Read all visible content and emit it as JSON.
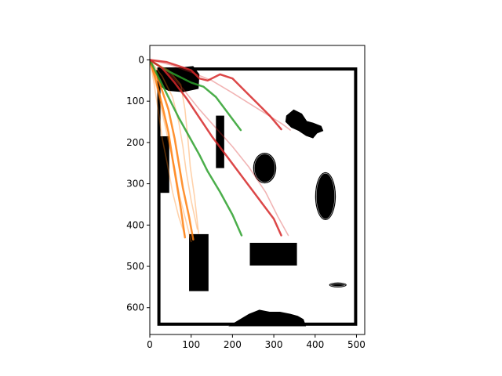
{
  "chart_data": {
    "type": "line",
    "title": "",
    "xlabel": "",
    "ylabel": "",
    "xlim": [
      0,
      520
    ],
    "ylim": [
      665,
      -35
    ],
    "y_inverted": true,
    "aspect": "equal",
    "x_ticks": [
      0,
      100,
      200,
      300,
      400,
      500
    ],
    "y_ticks": [
      0,
      100,
      200,
      300,
      400,
      500,
      600
    ],
    "x_tick_labels": [
      "0",
      "100",
      "200",
      "300",
      "400",
      "500"
    ],
    "y_tick_labels": [
      "0",
      "100",
      "200",
      "300",
      "400",
      "500",
      "600"
    ],
    "grid": false,
    "legend": "none",
    "colors": {
      "orange": "#ff7f0e",
      "green": "#2ca02c",
      "red": "#d62728",
      "obstacle": "#000000",
      "frame": "#000000"
    },
    "map": {
      "boundary": {
        "x0": 22,
        "y0": 22,
        "x1": 498,
        "y1": 640
      },
      "rectangles": [
        {
          "x0": 160,
          "y0": 135,
          "x1": 180,
          "y1": 262
        },
        {
          "x0": 95,
          "y0": 422,
          "x1": 142,
          "y1": 560
        },
        {
          "x0": 242,
          "y0": 443,
          "x1": 356,
          "y1": 498
        },
        {
          "x0": 20,
          "y0": 185,
          "x1": 47,
          "y1": 322
        }
      ],
      "ellipses": [
        {
          "cx": 278,
          "cy": 262,
          "rx": 28,
          "ry": 37
        },
        {
          "cx": 425,
          "cy": 330,
          "rx": 25,
          "ry": 58
        },
        {
          "cx": 455,
          "cy": 545,
          "rx": 21,
          "ry": 6
        }
      ],
      "blobs": [
        {
          "points": [
            [
              15,
              25
            ],
            [
              55,
              20
            ],
            [
              105,
              15
            ],
            [
              120,
              35
            ],
            [
              118,
              70
            ],
            [
              80,
              78
            ],
            [
              45,
              75
            ],
            [
              20,
              62
            ]
          ]
        },
        {
          "points": [
            [
              330,
              135
            ],
            [
              348,
              120
            ],
            [
              368,
              130
            ],
            [
              380,
              148
            ],
            [
              395,
              152
            ],
            [
              415,
              160
            ],
            [
              420,
              172
            ],
            [
              405,
              178
            ],
            [
              395,
              190
            ],
            [
              378,
              184
            ],
            [
              360,
              172
            ],
            [
              342,
              164
            ],
            [
              328,
              150
            ]
          ]
        },
        {
          "points": [
            [
              190,
              645
            ],
            [
              215,
              630
            ],
            [
              240,
              615
            ],
            [
              265,
              605
            ],
            [
              290,
              610
            ],
            [
              315,
              610
            ],
            [
              340,
              615
            ],
            [
              358,
              620
            ],
            [
              372,
              628
            ],
            [
              378,
              645
            ]
          ]
        }
      ]
    },
    "series": [
      {
        "group": "orange",
        "color": "#ff7f0e",
        "emphasis": true,
        "values": [
          [
            0,
            0
          ],
          [
            15,
            50
          ],
          [
            30,
            110
          ],
          [
            45,
            175
          ],
          [
            55,
            240
          ],
          [
            65,
            300
          ],
          [
            75,
            360
          ],
          [
            85,
            430
          ]
        ]
      },
      {
        "group": "orange",
        "color": "#ff7f0e",
        "emphasis": true,
        "values": [
          [
            0,
            0
          ],
          [
            25,
            60
          ],
          [
            45,
            120
          ],
          [
            60,
            190
          ],
          [
            70,
            250
          ],
          [
            80,
            310
          ],
          [
            95,
            380
          ],
          [
            105,
            435
          ]
        ]
      },
      {
        "group": "orange",
        "color": "#ff7f0e",
        "emphasis": false,
        "values": [
          [
            0,
            0
          ],
          [
            10,
            55
          ],
          [
            20,
            120
          ],
          [
            30,
            190
          ],
          [
            42,
            250
          ],
          [
            55,
            320
          ],
          [
            70,
            380
          ],
          [
            85,
            425
          ]
        ]
      },
      {
        "group": "orange",
        "color": "#ff7f0e",
        "emphasis": false,
        "values": [
          [
            0,
            0
          ],
          [
            30,
            40
          ],
          [
            55,
            90
          ],
          [
            70,
            150
          ],
          [
            80,
            210
          ],
          [
            88,
            270
          ],
          [
            100,
            340
          ],
          [
            115,
            410
          ]
        ]
      },
      {
        "group": "orange",
        "color": "#ff7f0e",
        "emphasis": false,
        "values": [
          [
            0,
            0
          ],
          [
            45,
            25
          ],
          [
            75,
            60
          ],
          [
            85,
            120
          ],
          [
            92,
            190
          ],
          [
            98,
            260
          ],
          [
            108,
            330
          ],
          [
            118,
            420
          ]
        ]
      },
      {
        "group": "orange",
        "color": "#ff7f0e",
        "emphasis": false,
        "values": [
          [
            0,
            0
          ],
          [
            20,
            80
          ],
          [
            35,
            150
          ],
          [
            48,
            210
          ],
          [
            60,
            260
          ],
          [
            72,
            330
          ],
          [
            90,
            400
          ],
          [
            100,
            440
          ]
        ]
      },
      {
        "group": "green",
        "color": "#2ca02c",
        "emphasis": true,
        "values": [
          [
            0,
            0
          ],
          [
            30,
            20
          ],
          [
            60,
            35
          ],
          [
            100,
            55
          ],
          [
            130,
            65
          ],
          [
            160,
            90
          ],
          [
            190,
            130
          ],
          [
            220,
            170
          ]
        ]
      },
      {
        "group": "green",
        "color": "#2ca02c",
        "emphasis": true,
        "values": [
          [
            0,
            0
          ],
          [
            20,
            40
          ],
          [
            45,
            90
          ],
          [
            70,
            140
          ],
          [
            95,
            185
          ],
          [
            120,
            230
          ],
          [
            140,
            270
          ],
          [
            170,
            320
          ],
          [
            200,
            375
          ],
          [
            222,
            425
          ]
        ]
      },
      {
        "group": "red",
        "color": "#d62728",
        "emphasis": true,
        "values": [
          [
            0,
            0
          ],
          [
            40,
            5
          ],
          [
            70,
            15
          ],
          [
            100,
            25
          ],
          [
            120,
            45
          ],
          [
            140,
            50
          ],
          [
            170,
            35
          ],
          [
            200,
            45
          ],
          [
            230,
            75
          ],
          [
            260,
            105
          ],
          [
            290,
            135
          ],
          [
            318,
            168
          ]
        ]
      },
      {
        "group": "red",
        "color": "#d62728",
        "emphasis": true,
        "values": [
          [
            0,
            0
          ],
          [
            30,
            20
          ],
          [
            60,
            55
          ],
          [
            90,
            95
          ],
          [
            120,
            140
          ],
          [
            150,
            185
          ],
          [
            180,
            225
          ],
          [
            210,
            265
          ],
          [
            240,
            305
          ],
          [
            270,
            345
          ],
          [
            300,
            385
          ],
          [
            318,
            425
          ]
        ]
      },
      {
        "group": "red",
        "color": "#d62728",
        "emphasis": false,
        "values": [
          [
            0,
            0
          ],
          [
            50,
            12
          ],
          [
            100,
            30
          ],
          [
            150,
            50
          ],
          [
            200,
            80
          ],
          [
            240,
            105
          ],
          [
            280,
            130
          ],
          [
            320,
            155
          ],
          [
            340,
            170
          ]
        ]
      },
      {
        "group": "red",
        "color": "#d62728",
        "emphasis": false,
        "values": [
          [
            0,
            0
          ],
          [
            40,
            25
          ],
          [
            80,
            70
          ],
          [
            120,
            120
          ],
          [
            160,
            165
          ],
          [
            200,
            210
          ],
          [
            240,
            260
          ],
          [
            280,
            320
          ],
          [
            310,
            380
          ],
          [
            335,
            425
          ]
        ]
      }
    ]
  }
}
